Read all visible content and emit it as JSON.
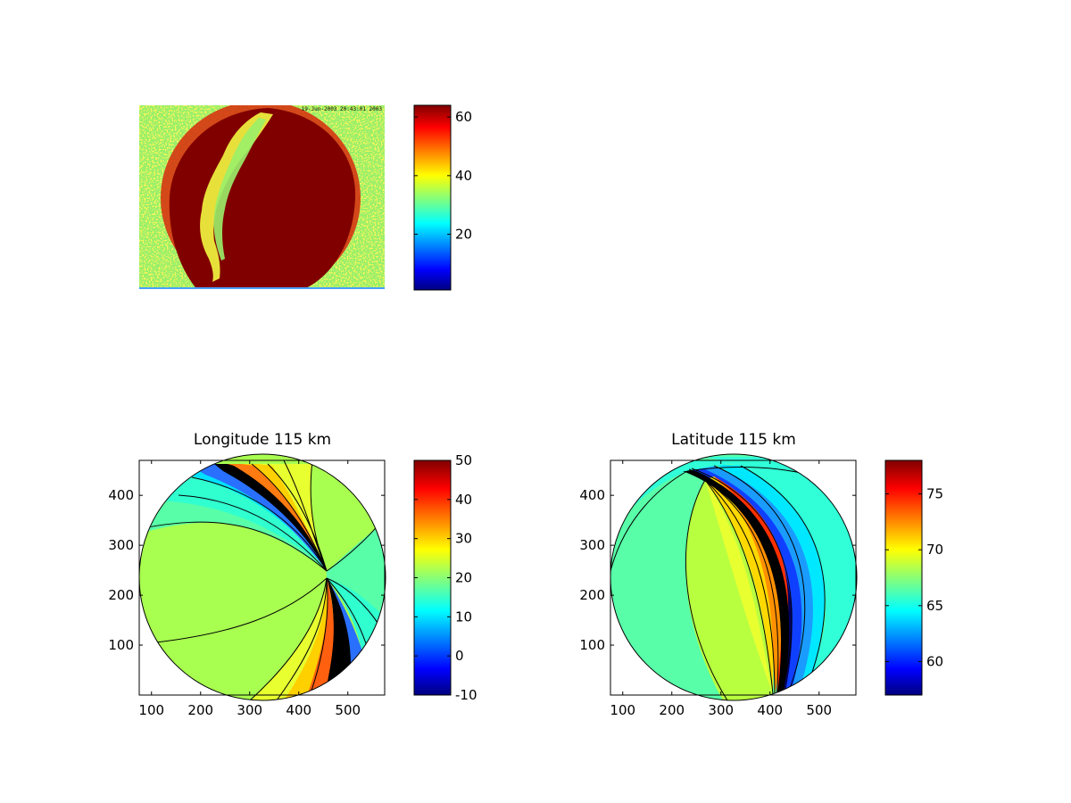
{
  "chart_data": [
    {
      "type": "heatmap",
      "title": "",
      "xlabel": "",
      "ylabel": "",
      "axes_visible": false,
      "image_overlay_text": "19-Jun-2003 20:43:01 2003",
      "colormap": "jet",
      "colorbar": {
        "range": [
          1,
          64
        ],
        "ticks": [
          20,
          40,
          60
        ],
        "tick_labels": [
          "20",
          "40",
          "60"
        ]
      }
    },
    {
      "type": "heatmap",
      "title": "Longitude 115 km",
      "xlabel": "",
      "ylabel": "",
      "xlim": [
        75,
        575
      ],
      "ylim": [
        0,
        470
      ],
      "xticks": [
        100,
        200,
        300,
        400,
        500
      ],
      "xtick_labels": [
        "100",
        "200",
        "300",
        "400",
        "500"
      ],
      "yticks": [
        100,
        200,
        300,
        400
      ],
      "ytick_labels": [
        "100",
        "200",
        "300",
        "400"
      ],
      "colormap": "jet",
      "colorbar": {
        "range": [
          -10,
          50
        ],
        "ticks": [
          -10,
          0,
          10,
          20,
          30,
          40,
          50
        ],
        "tick_labels": [
          "-10",
          "0",
          "10",
          "20",
          "30",
          "40",
          "50"
        ]
      }
    },
    {
      "type": "heatmap",
      "title": "Latitude 115 km",
      "xlabel": "",
      "ylabel": "",
      "xlim": [
        75,
        575
      ],
      "ylim": [
        0,
        470
      ],
      "xticks": [
        100,
        200,
        300,
        400,
        500
      ],
      "xtick_labels": [
        "100",
        "200",
        "300",
        "400",
        "500"
      ],
      "yticks": [
        100,
        200,
        300,
        400
      ],
      "ytick_labels": [
        "100",
        "200",
        "300",
        "400"
      ],
      "colormap": "jet",
      "colorbar": {
        "range": [
          57,
          78
        ],
        "ticks": [
          60,
          65,
          70,
          75
        ],
        "tick_labels": [
          "60",
          "65",
          "70",
          "75"
        ]
      }
    }
  ],
  "colors": {
    "background_green": "#9aef6a",
    "disk_red": "#800000",
    "contour_line": "#000000",
    "lon_main": "#a8ff50",
    "lat_main": "#58ffa8"
  }
}
